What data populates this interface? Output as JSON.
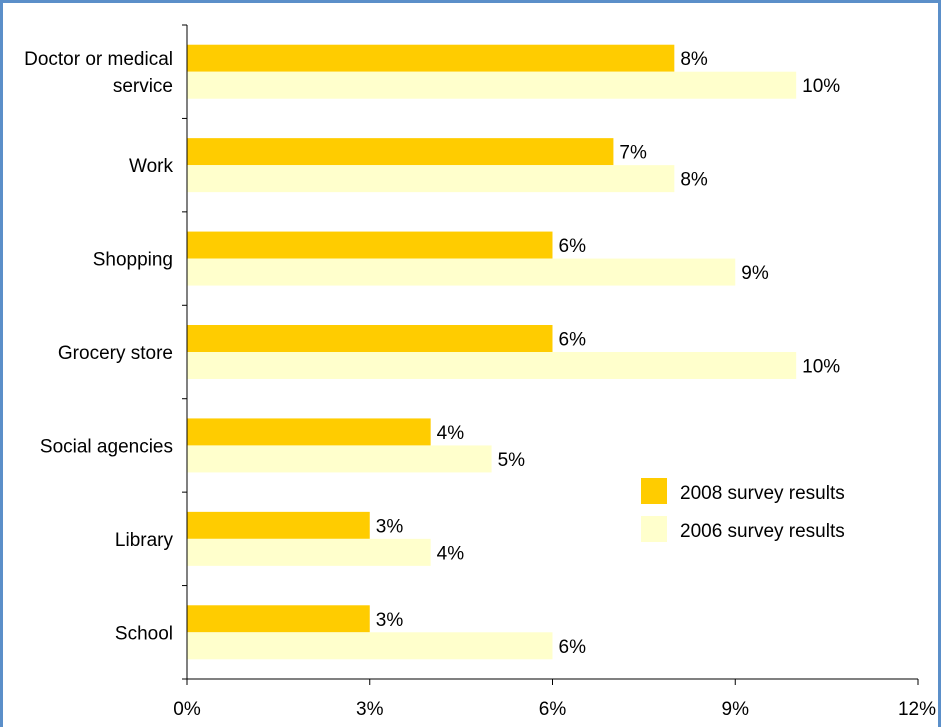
{
  "chart_data": {
    "type": "bar",
    "orientation": "horizontal",
    "categories": [
      "Doctor or medical service",
      "Work",
      "Shopping",
      "Grocery store",
      "Social agencies",
      "Library",
      "School"
    ],
    "category_label_lines": [
      [
        "Doctor or medical",
        "service"
      ],
      [
        "Work"
      ],
      [
        "Shopping"
      ],
      [
        "Grocery store"
      ],
      [
        "Social agencies"
      ],
      [
        "Library"
      ],
      [
        "School"
      ]
    ],
    "series": [
      {
        "name": "2008 survey results",
        "color": "#ffcc00",
        "values": [
          8,
          7,
          6,
          6,
          4,
          3,
          3
        ],
        "labels": [
          "8%",
          "7%",
          "6%",
          "6%",
          "4%",
          "3%",
          "3%"
        ]
      },
      {
        "name": "2006 survey results",
        "color": "#ffffcc",
        "values": [
          10,
          8,
          9,
          10,
          5,
          4,
          6
        ],
        "labels": [
          "10%",
          "8%",
          "9%",
          "10%",
          "5%",
          "4%",
          "6%"
        ]
      }
    ],
    "xlim": [
      0,
      12
    ],
    "x_ticks": [
      0,
      3,
      6,
      9,
      12
    ],
    "x_tick_labels": [
      "0%",
      "3%",
      "6%",
      "9%",
      "12%"
    ],
    "title": "",
    "xlabel": "",
    "ylabel": "",
    "grid": false,
    "legend_position": "right"
  }
}
